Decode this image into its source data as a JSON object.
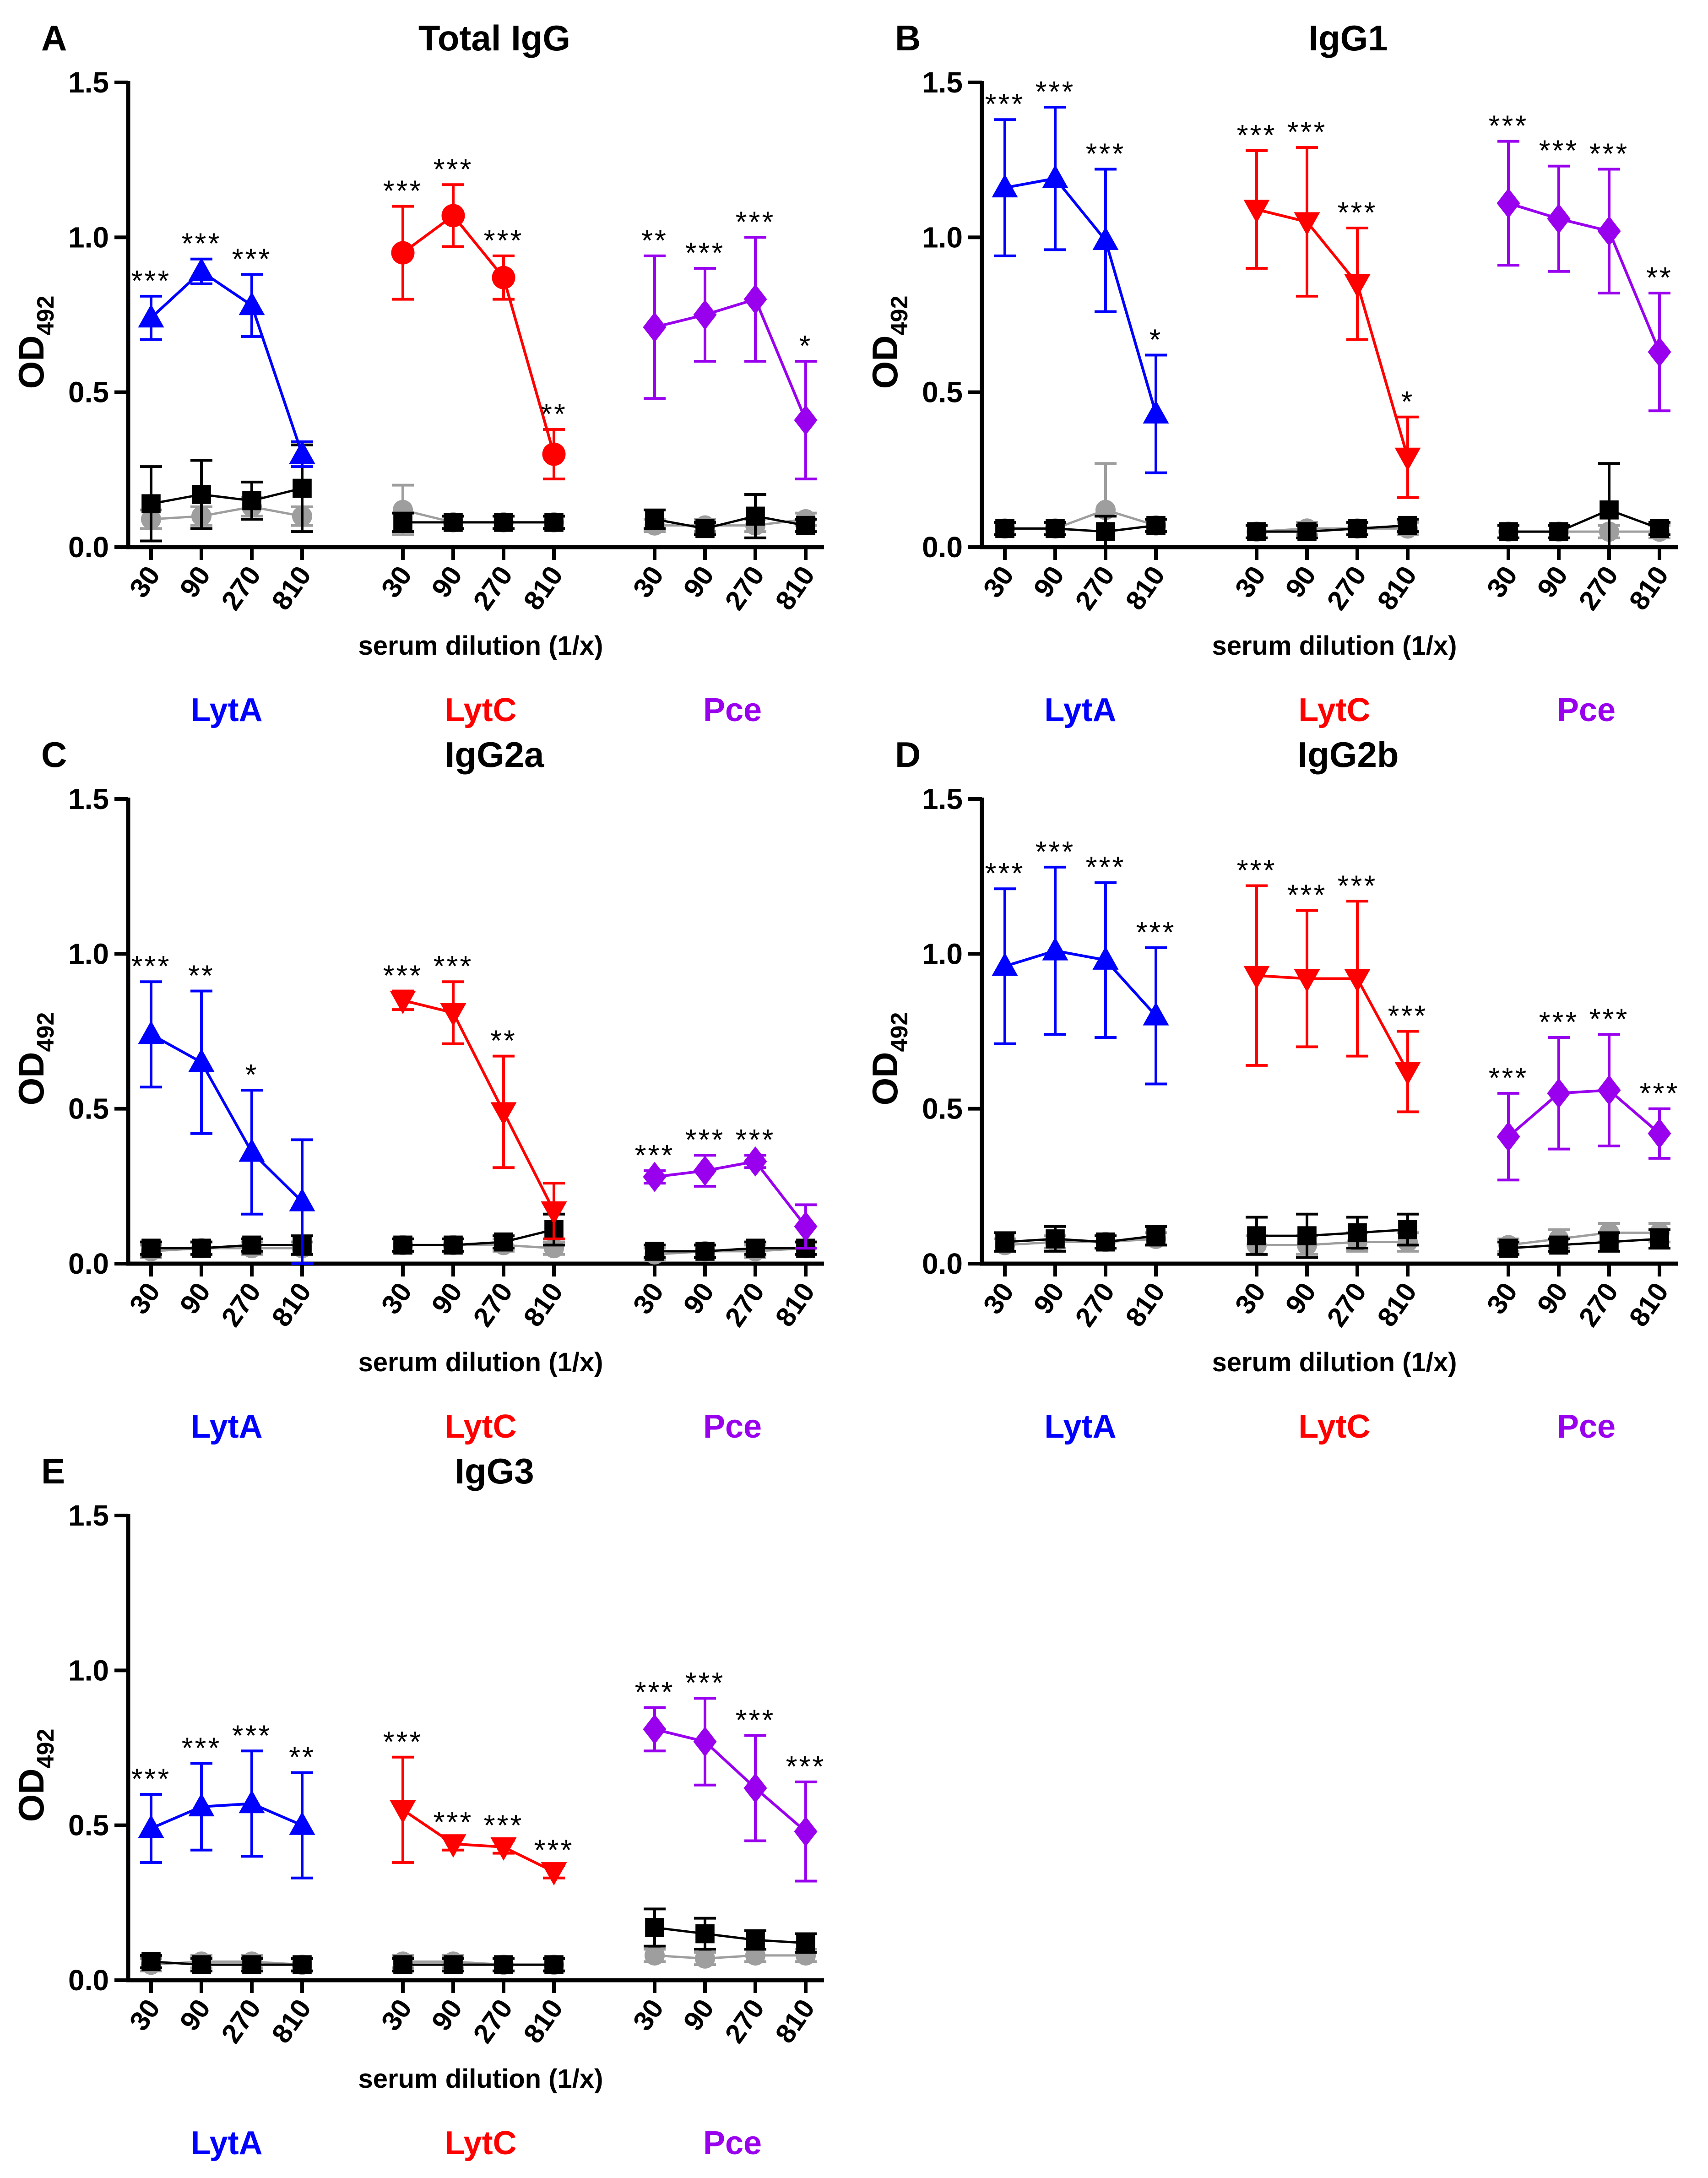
{
  "x_label": "serum dilution (1/x)",
  "y_label_main": "OD",
  "y_label_sub": "492",
  "dilutions": [
    "30",
    "90",
    "270",
    "810"
  ],
  "groups": [
    {
      "name": "LytA",
      "color": "#0000ff",
      "marker": "triangle-up"
    },
    {
      "name": "LytC",
      "color": "#ff0000",
      "marker": "triangle-down"
    },
    {
      "name": "Pce",
      "color": "#9900ee",
      "marker": "diamond"
    }
  ],
  "control_colors": {
    "black": "#000000",
    "gray": "#9e9e9e"
  },
  "chart_data": [
    {
      "type": "line",
      "letter": "A",
      "title": "Total IgG",
      "ylim": [
        0,
        1.5
      ],
      "yticks": [
        "0.0",
        "0.5",
        "1.0",
        "1.5"
      ],
      "LytA_marker": "triangle-up",
      "LytC_marker": "circle",
      "Pce_marker": "diamond",
      "series": [
        {
          "name": "LytA",
          "values": [
            0.74,
            0.89,
            0.78,
            0.3
          ],
          "err": [
            0.07,
            0.04,
            0.1,
            0.04
          ],
          "stars": [
            "***",
            "***",
            "***",
            ""
          ],
          "black": [
            0.14,
            0.17,
            0.15,
            0.19
          ],
          "black_err": [
            0.12,
            0.11,
            0.06,
            0.14
          ],
          "gray": [
            0.09,
            0.1,
            0.13,
            0.1
          ],
          "gray_err": [
            0.03,
            0.03,
            0.03,
            0.03
          ]
        },
        {
          "name": "LytC",
          "values": [
            0.95,
            1.07,
            0.87,
            0.3
          ],
          "err": [
            0.15,
            0.1,
            0.07,
            0.08
          ],
          "stars": [
            "***",
            "***",
            "***",
            "**"
          ],
          "black": [
            0.08,
            0.08,
            0.08,
            0.08
          ],
          "black_err": [
            0.03,
            0.02,
            0.02,
            0.02
          ],
          "gray": [
            0.12,
            0.08,
            0.08,
            0.08
          ],
          "gray_err": [
            0.08,
            0.02,
            0.02,
            0.02
          ]
        },
        {
          "name": "Pce",
          "values": [
            0.71,
            0.75,
            0.8,
            0.41
          ],
          "err": [
            0.23,
            0.15,
            0.2,
            0.19
          ],
          "stars": [
            "**",
            "***",
            "***",
            "*"
          ],
          "black": [
            0.09,
            0.06,
            0.1,
            0.07
          ],
          "black_err": [
            0.03,
            0.02,
            0.07,
            0.02
          ],
          "gray": [
            0.07,
            0.07,
            0.07,
            0.09
          ],
          "gray_err": [
            0.02,
            0.02,
            0.02,
            0.02
          ]
        }
      ]
    },
    {
      "type": "line",
      "letter": "B",
      "title": "IgG1",
      "ylim": [
        0,
        1.5
      ],
      "yticks": [
        "0.0",
        "0.5",
        "1.0",
        "1.5"
      ],
      "LytA_marker": "triangle-up",
      "LytC_marker": "triangle-down",
      "Pce_marker": "diamond",
      "series": [
        {
          "name": "LytA",
          "values": [
            1.16,
            1.19,
            0.99,
            0.43
          ],
          "err": [
            0.22,
            0.23,
            0.23,
            0.19
          ],
          "stars": [
            "***",
            "***",
            "***",
            "*"
          ],
          "black": [
            0.06,
            0.06,
            0.05,
            0.07
          ],
          "black_err": [
            0.02,
            0.02,
            0.05,
            0.02
          ],
          "gray": [
            0.06,
            0.06,
            0.12,
            0.07
          ],
          "gray_err": [
            0.02,
            0.02,
            0.15,
            0.02
          ]
        },
        {
          "name": "LytC",
          "values": [
            1.09,
            1.05,
            0.85,
            0.29
          ],
          "err": [
            0.19,
            0.24,
            0.18,
            0.13
          ],
          "stars": [
            "***",
            "***",
            "***",
            "*"
          ],
          "black": [
            0.05,
            0.05,
            0.06,
            0.07
          ],
          "black_err": [
            0.02,
            0.02,
            0.02,
            0.02
          ],
          "gray": [
            0.05,
            0.06,
            0.06,
            0.06
          ],
          "gray_err": [
            0.02,
            0.02,
            0.02,
            0.02
          ]
        },
        {
          "name": "Pce",
          "values": [
            1.11,
            1.06,
            1.02,
            0.63
          ],
          "err": [
            0.2,
            0.17,
            0.2,
            0.19
          ],
          "stars": [
            "***",
            "***",
            "***",
            "**"
          ],
          "black": [
            0.05,
            0.05,
            0.12,
            0.06
          ],
          "black_err": [
            0.02,
            0.02,
            0.15,
            0.02
          ],
          "gray": [
            0.05,
            0.05,
            0.05,
            0.05
          ],
          "gray_err": [
            0.02,
            0.02,
            0.02,
            0.02
          ]
        }
      ]
    },
    {
      "type": "line",
      "letter": "C",
      "title": "IgG2a",
      "ylim": [
        0,
        1.5
      ],
      "yticks": [
        "0.0",
        "0.5",
        "1.0",
        "1.5"
      ],
      "LytA_marker": "triangle-up",
      "LytC_marker": "triangle-down",
      "Pce_marker": "diamond",
      "series": [
        {
          "name": "LytA",
          "values": [
            0.74,
            0.65,
            0.36,
            0.2
          ],
          "err": [
            0.17,
            0.23,
            0.2,
            0.2
          ],
          "stars": [
            "***",
            "**",
            "*",
            ""
          ],
          "black": [
            0.05,
            0.05,
            0.06,
            0.06
          ],
          "black_err": [
            0.02,
            0.02,
            0.02,
            0.03
          ],
          "gray": [
            0.04,
            0.05,
            0.05,
            0.05
          ],
          "gray_err": [
            0.02,
            0.02,
            0.02,
            0.02
          ]
        },
        {
          "name": "LytC",
          "values": [
            0.85,
            0.81,
            0.49,
            0.17
          ],
          "err": [
            0.03,
            0.1,
            0.18,
            0.09
          ],
          "stars": [
            "***",
            "***",
            "**",
            ""
          ],
          "black": [
            0.06,
            0.06,
            0.07,
            0.11
          ],
          "black_err": [
            0.02,
            0.02,
            0.02,
            0.05
          ],
          "gray": [
            0.06,
            0.06,
            0.06,
            0.05
          ],
          "gray_err": [
            0.02,
            0.02,
            0.02,
            0.02
          ]
        },
        {
          "name": "Pce",
          "values": [
            0.28,
            0.3,
            0.33,
            0.12
          ],
          "err": [
            0.02,
            0.05,
            0.02,
            0.07
          ],
          "stars": [
            "***",
            "***",
            "***",
            ""
          ],
          "black": [
            0.04,
            0.04,
            0.05,
            0.05
          ],
          "black_err": [
            0.02,
            0.02,
            0.02,
            0.02
          ],
          "gray": [
            0.03,
            0.04,
            0.04,
            0.05
          ],
          "gray_err": [
            0.02,
            0.02,
            0.02,
            0.02
          ]
        }
      ]
    },
    {
      "type": "line",
      "letter": "D",
      "title": "IgG2b",
      "ylim": [
        0,
        1.5
      ],
      "yticks": [
        "0.0",
        "0.5",
        "1.0",
        "1.5"
      ],
      "LytA_marker": "triangle-up",
      "LytC_marker": "triangle-down",
      "Pce_marker": "diamond",
      "series": [
        {
          "name": "LytA",
          "values": [
            0.96,
            1.01,
            0.98,
            0.8
          ],
          "err": [
            0.25,
            0.27,
            0.25,
            0.22
          ],
          "stars": [
            "***",
            "***",
            "***",
            "***"
          ],
          "black": [
            0.07,
            0.08,
            0.07,
            0.09
          ],
          "black_err": [
            0.03,
            0.04,
            0.02,
            0.03
          ],
          "gray": [
            0.06,
            0.07,
            0.07,
            0.08
          ],
          "gray_err": [
            0.02,
            0.02,
            0.02,
            0.02
          ]
        },
        {
          "name": "LytC",
          "values": [
            0.93,
            0.92,
            0.92,
            0.62
          ],
          "err": [
            0.29,
            0.22,
            0.25,
            0.13
          ],
          "stars": [
            "***",
            "***",
            "***",
            "***"
          ],
          "black": [
            0.09,
            0.09,
            0.1,
            0.11
          ],
          "black_err": [
            0.06,
            0.07,
            0.05,
            0.05
          ],
          "gray": [
            0.06,
            0.06,
            0.07,
            0.07
          ],
          "gray_err": [
            0.03,
            0.03,
            0.03,
            0.03
          ]
        },
        {
          "name": "Pce",
          "values": [
            0.41,
            0.55,
            0.56,
            0.42
          ],
          "err": [
            0.14,
            0.18,
            0.18,
            0.08
          ],
          "stars": [
            "***",
            "***",
            "***",
            "***"
          ],
          "black": [
            0.05,
            0.06,
            0.07,
            0.08
          ],
          "black_err": [
            0.02,
            0.02,
            0.03,
            0.03
          ],
          "gray": [
            0.06,
            0.08,
            0.1,
            0.1
          ],
          "gray_err": [
            0.02,
            0.03,
            0.03,
            0.03
          ]
        }
      ]
    },
    {
      "type": "line",
      "letter": "E",
      "title": "IgG3",
      "ylim": [
        0,
        1.5
      ],
      "yticks": [
        "0.0",
        "0.5",
        "1.0",
        "1.5"
      ],
      "LytA_marker": "triangle-up",
      "LytC_marker": "triangle-down",
      "Pce_marker": "diamond",
      "series": [
        {
          "name": "LytA",
          "values": [
            0.49,
            0.56,
            0.57,
            0.5
          ],
          "err": [
            0.11,
            0.14,
            0.17,
            0.17
          ],
          "stars": [
            "***",
            "***",
            "***",
            "**"
          ],
          "black": [
            0.06,
            0.05,
            0.05,
            0.05
          ],
          "black_err": [
            0.02,
            0.02,
            0.02,
            0.02
          ],
          "gray": [
            0.05,
            0.06,
            0.06,
            0.05
          ],
          "gray_err": [
            0.02,
            0.02,
            0.02,
            0.02
          ]
        },
        {
          "name": "LytC",
          "values": [
            0.55,
            0.44,
            0.43,
            0.35
          ],
          "err": [
            0.17,
            0.02,
            0.02,
            0.02
          ],
          "stars": [
            "***",
            "***",
            "***",
            "***"
          ],
          "black": [
            0.05,
            0.05,
            0.05,
            0.05
          ],
          "black_err": [
            0.02,
            0.02,
            0.02,
            0.02
          ],
          "gray": [
            0.06,
            0.06,
            0.05,
            0.05
          ],
          "gray_err": [
            0.02,
            0.02,
            0.02,
            0.02
          ]
        },
        {
          "name": "Pce",
          "values": [
            0.81,
            0.77,
            0.62,
            0.48
          ],
          "err": [
            0.07,
            0.14,
            0.17,
            0.16
          ],
          "stars": [
            "***",
            "***",
            "***",
            "***"
          ],
          "black": [
            0.17,
            0.15,
            0.13,
            0.12
          ],
          "black_err": [
            0.06,
            0.05,
            0.03,
            0.03
          ],
          "gray": [
            0.08,
            0.07,
            0.08,
            0.08
          ],
          "gray_err": [
            0.02,
            0.02,
            0.02,
            0.02
          ]
        }
      ]
    }
  ]
}
